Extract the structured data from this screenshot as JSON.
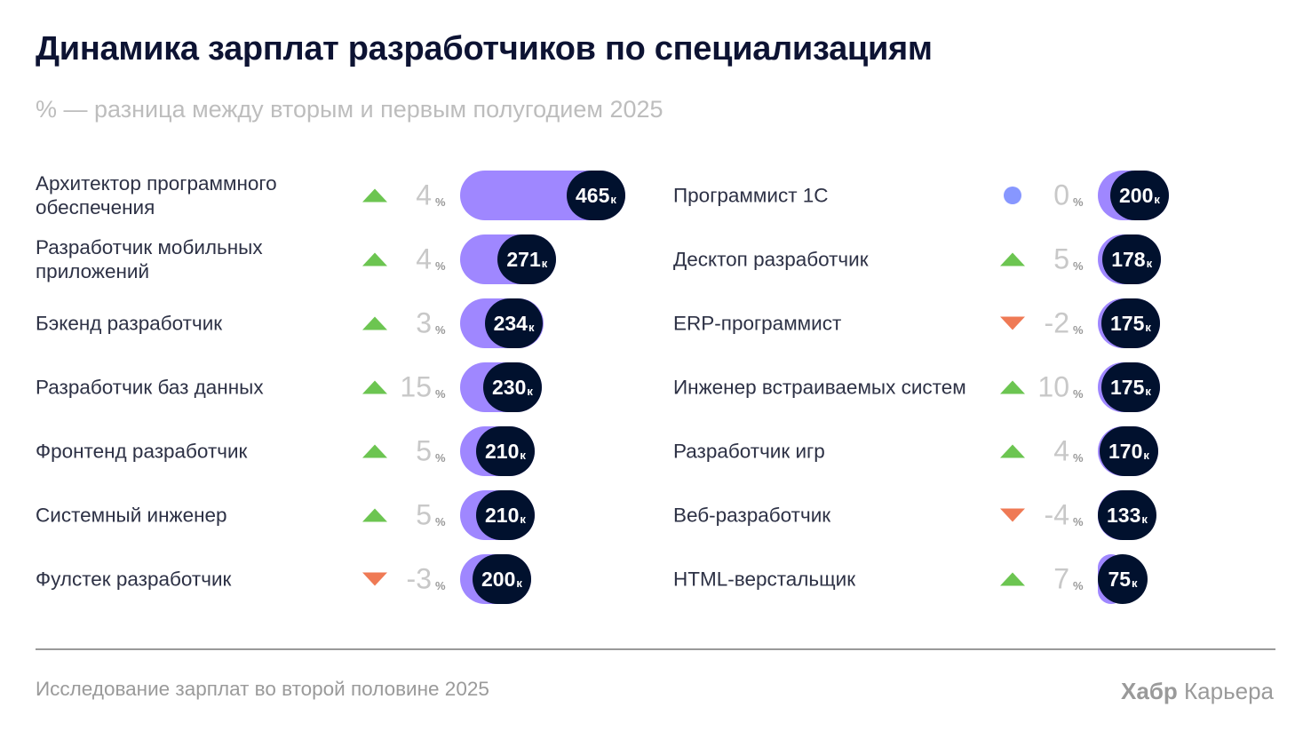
{
  "title": "Динамика зарплат разработчиков по специализациям",
  "subtitle": "% — разница между вторым и первым полугодием 2025",
  "footer": {
    "source": "Исследование зарплат во второй половине 2025",
    "brand_bold": "Хабр",
    "brand_rest": "Карьера"
  },
  "colors": {
    "bar": "#9f87ff",
    "pill": "#01112e",
    "up": "#6cc551",
    "down": "#ef7a55",
    "neutral": "#8797ff"
  },
  "chart_data": {
    "type": "bar",
    "unit_suffix": "к",
    "pct_suffix": "%",
    "columns": [
      [
        {
          "label": "Архитектор программного обеспечения",
          "salary": 465,
          "change": 4,
          "trend": "up"
        },
        {
          "label": "Разработчик мобильных приложений",
          "salary": 271,
          "change": 4,
          "trend": "up"
        },
        {
          "label": "Бэкенд разработчик",
          "salary": 234,
          "change": 3,
          "trend": "up"
        },
        {
          "label": "Разработчик баз данных",
          "salary": 230,
          "change": 15,
          "trend": "up"
        },
        {
          "label": "Фронтенд разработчик",
          "salary": 210,
          "change": 5,
          "trend": "up"
        },
        {
          "label": "Системный инженер",
          "salary": 210,
          "change": 5,
          "trend": "up"
        },
        {
          "label": "Фулстек разработчик",
          "salary": 200,
          "change": -3,
          "trend": "down"
        }
      ],
      [
        {
          "label": "Программист 1С",
          "salary": 200,
          "change": 0,
          "trend": "flat"
        },
        {
          "label": "Десктоп разработчик",
          "salary": 178,
          "change": 5,
          "trend": "up"
        },
        {
          "label": "ERP-программист",
          "salary": 175,
          "change": -2,
          "trend": "down"
        },
        {
          "label": "Инженер встраиваемых систем",
          "salary": 175,
          "change": 10,
          "trend": "up"
        },
        {
          "label": "Разработчик игр",
          "salary": 170,
          "change": 4,
          "trend": "up"
        },
        {
          "label": "Веб-разработчик",
          "salary": 133,
          "change": -4,
          "trend": "down"
        },
        {
          "label": "HTML-верстальщик",
          "salary": 75,
          "change": 7,
          "trend": "up"
        }
      ]
    ]
  }
}
